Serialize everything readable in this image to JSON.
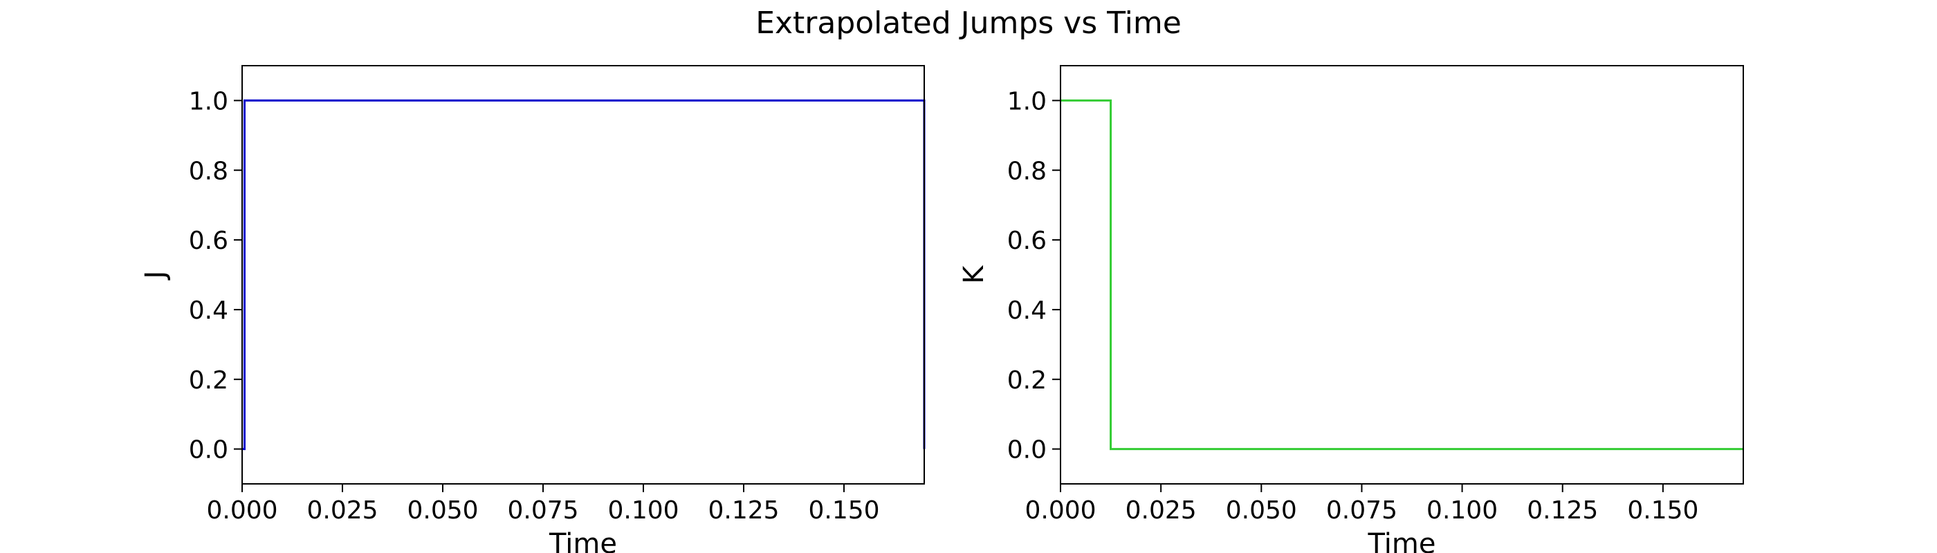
{
  "title": "Extrapolated Jumps vs Time",
  "chart_data": [
    {
      "type": "line",
      "step": "post",
      "xlabel": "Time",
      "ylabel": "J",
      "xlim": [
        0.0,
        0.17
      ],
      "ylim": [
        -0.1,
        1.1
      ],
      "xticks": [
        "0.000",
        "0.025",
        "0.050",
        "0.075",
        "0.100",
        "0.125",
        "0.150"
      ],
      "yticks": [
        "0.0",
        "0.2",
        "0.4",
        "0.6",
        "0.8",
        "1.0"
      ],
      "grid": false,
      "series": [
        {
          "color": "#0000cc",
          "x": [
            0.0,
            0.0006,
            0.1694,
            0.17
          ],
          "y": [
            0,
            1,
            1,
            0
          ]
        }
      ]
    },
    {
      "type": "line",
      "step": "post",
      "xlabel": "Time",
      "ylabel": "K",
      "xlim": [
        0.0,
        0.17
      ],
      "ylim": [
        -0.1,
        1.1
      ],
      "xticks": [
        "0.000",
        "0.025",
        "0.050",
        "0.075",
        "0.100",
        "0.125",
        "0.150"
      ],
      "yticks": [
        "0.0",
        "0.2",
        "0.4",
        "0.6",
        "0.8",
        "1.0"
      ],
      "grid": false,
      "series": [
        {
          "color": "#33cc33",
          "x": [
            0.0,
            0.0125,
            0.17
          ],
          "y": [
            1,
            0,
            0
          ]
        }
      ]
    }
  ]
}
